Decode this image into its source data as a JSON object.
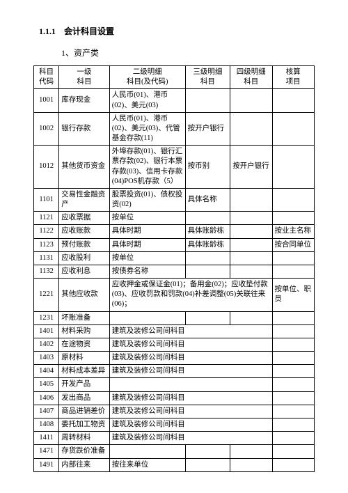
{
  "title": {
    "section": "1.1.1　会计科目设置",
    "subtitle": "1、资产类"
  },
  "columns": [
    {
      "l1": "科目",
      "l2": "代码"
    },
    {
      "l1": "一级",
      "l2": "科目"
    },
    {
      "l1": "二级明细",
      "l2": "科目(及代码)"
    },
    {
      "l1": "三级明细",
      "l2": "科目"
    },
    {
      "l1": "四级明细",
      "l2": "科目"
    },
    {
      "l1": "核算",
      "l2": "项目"
    }
  ],
  "rows": [
    {
      "code": "1001",
      "lv1": "库存现金",
      "lv2": "人民币(01)、港币(02)、美元(03)",
      "lv3": "",
      "lv4": "",
      "item": ""
    },
    {
      "code": "1002",
      "lv1": "银行存款",
      "lv2": "人民币(01)、港币(02)、美元(03)、代管基金存款(11)",
      "lv3": "按开户银行",
      "lv4": "",
      "item": ""
    },
    {
      "code": "1012",
      "lv1": "其他货币资金",
      "lv2": "外埠存款(01)、银行汇票存款(02)、银行本票存款(03)、信用卡存款(04)POS机存款（5）",
      "lv3": "按币别",
      "lv4": "按开户银行",
      "item": ""
    },
    {
      "code": "1101",
      "lv1": "交易性金融资产",
      "lv2": "股票投资(01)、债权投资(02)",
      "lv3": "具体名称",
      "lv4": "",
      "item": ""
    },
    {
      "code": "1121",
      "lv1": "应收票据",
      "lv2": "按单位",
      "lv3": "",
      "lv4": "",
      "item": ""
    },
    {
      "code": "1122",
      "lv1": "应收账款",
      "lv2": "具体时期",
      "lv3": "具体账龄栋",
      "lv4": "",
      "item": "按业主名称"
    },
    {
      "code": "1123",
      "lv1": "预付账款",
      "lv2": "具体时期",
      "lv3": "具体账龄栋",
      "lv4": "",
      "item": "按合同单位"
    },
    {
      "code": "1131",
      "lv1": "应收股利",
      "lv2": "按单位",
      "lv3": "",
      "lv4": "",
      "item": ""
    },
    {
      "code": "1132",
      "lv1": "应收利息",
      "lv2": "按债券名称",
      "lv3": "",
      "lv4": "",
      "item": ""
    },
    {
      "code": "1221",
      "lv1": "其他应收款",
      "lv2": "应收押金或保证金(01)；备用金(02)；应收垫付款(03)、应收罚款和罚款(04)补差调整(05)关联往来(06)；",
      "merge234": true,
      "item": "按单位、职员"
    },
    {
      "code": "1231",
      "lv1": "坏账准备",
      "lv2": "",
      "lv3": "",
      "lv4": "",
      "item": ""
    },
    {
      "code": "1401",
      "lv1": "材料采购",
      "lv2": "建筑及装修公司间科目",
      "merge234": true,
      "item": ""
    },
    {
      "code": "1402",
      "lv1": "在途物资",
      "lv2": "建筑及装修公司间科目",
      "merge234": true,
      "item": ""
    },
    {
      "code": "1403",
      "lv1": "原材料",
      "lv2": "建筑及装修公司间科目",
      "merge234": true,
      "item": ""
    },
    {
      "code": "1404",
      "lv1": "材料成本差异",
      "lv2": "建筑及装修公司间科目",
      "merge234": true,
      "item": ""
    },
    {
      "code": "1405",
      "lv1": "开发产品",
      "lv2": "",
      "merge234": true,
      "item": ""
    },
    {
      "code": "1406",
      "lv1": "发出商品",
      "lv2": "建筑及装修公司间科目",
      "merge234": true,
      "item": ""
    },
    {
      "code": "1407",
      "lv1": "商品进销差价",
      "lv2": "建筑及装修公司间科目",
      "merge234": true,
      "item": ""
    },
    {
      "code": "1408",
      "lv1": "委托加工物资",
      "lv2": "建筑及装修公司间科目",
      "merge234": true,
      "item": ""
    },
    {
      "code": "1411",
      "lv1": "周转材料",
      "lv2": "建筑及装修公司间科目",
      "merge234": true,
      "item": ""
    },
    {
      "code": "1471",
      "lv1": "存货跌价准备",
      "lv2": "",
      "lv3": "",
      "lv4": "",
      "item": ""
    },
    {
      "code": "1491",
      "lv1": "内部往来",
      "lv2": "按往来单位",
      "lv3": "",
      "lv4": "",
      "item": ""
    }
  ]
}
